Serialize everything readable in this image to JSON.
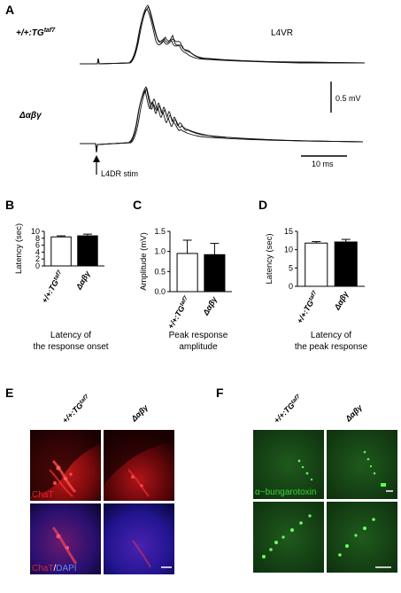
{
  "panels": {
    "A": {
      "letter": "A",
      "genotype1_main": "+/+:TG",
      "genotype1_sup": "taf7",
      "genotype2": "Δαβγ",
      "recording_label": "L4VR",
      "voltage_scale": "0.5 mV",
      "time_scale": "10 ms",
      "stim_label": "L4DR stim"
    },
    "B": {
      "letter": "B",
      "caption_line1": "Latency of",
      "caption_line2": "the response onset"
    },
    "C": {
      "letter": "C",
      "caption_line1": "Peak response",
      "caption_line2": "amplitude"
    },
    "D": {
      "letter": "D",
      "caption_line1": "Latency of",
      "caption_line2": "the peak response"
    },
    "E": {
      "letter": "E",
      "col1_main": "+/+:TG",
      "col1_sup": "taf7",
      "col2": "Δαβγ",
      "stain_top": "ChaT",
      "stain_bottom_1": "ChaT",
      "stain_bottom_sep": "/",
      "stain_bottom_2": "DAPI"
    },
    "F": {
      "letter": "F",
      "col1_main": "+/+:TG",
      "col1_sup": "taf7",
      "col2": "Δαβγ",
      "stain_top": "α−bungarotoxin"
    }
  },
  "colors": {
    "chat_red": "#e0262a",
    "dapi_blue": "#2a2ad8",
    "btx_green": "#3fd23a",
    "bar_wt": "#ffffff",
    "bar_mut": "#000000"
  },
  "chart_data": [
    {
      "type": "bar",
      "panel": "B",
      "categories_main": [
        "+/+:TG",
        "Δαβγ"
      ],
      "categories_sup": [
        "taf7",
        ""
      ],
      "values": [
        8.4,
        8.7
      ],
      "errors": [
        0.3,
        0.5
      ],
      "ylabel": "Latency (sec)",
      "ylim": [
        0,
        10
      ],
      "yticks": [
        "0",
        "2",
        "4",
        "6",
        "8",
        "10"
      ]
    },
    {
      "type": "bar",
      "panel": "C",
      "categories_main": [
        "+/+:TG",
        "Δαβγ"
      ],
      "categories_sup": [
        "taf7",
        ""
      ],
      "values": [
        0.95,
        0.92
      ],
      "errors": [
        0.33,
        0.28
      ],
      "ylabel": "Amplitude (mV)",
      "ylim": [
        0,
        1.5
      ],
      "yticks": [
        "0.0",
        "0.5",
        "1.0",
        "1.5"
      ]
    },
    {
      "type": "bar",
      "panel": "D",
      "categories_main": [
        "+/+:TG",
        "Δαβγ"
      ],
      "categories_sup": [
        "taf7",
        ""
      ],
      "values": [
        11.8,
        12.1
      ],
      "errors": [
        0.4,
        0.7
      ],
      "ylabel": "Latency (sec)",
      "ylim": [
        0,
        15
      ],
      "yticks": [
        "0",
        "5",
        "10",
        "15"
      ]
    }
  ]
}
